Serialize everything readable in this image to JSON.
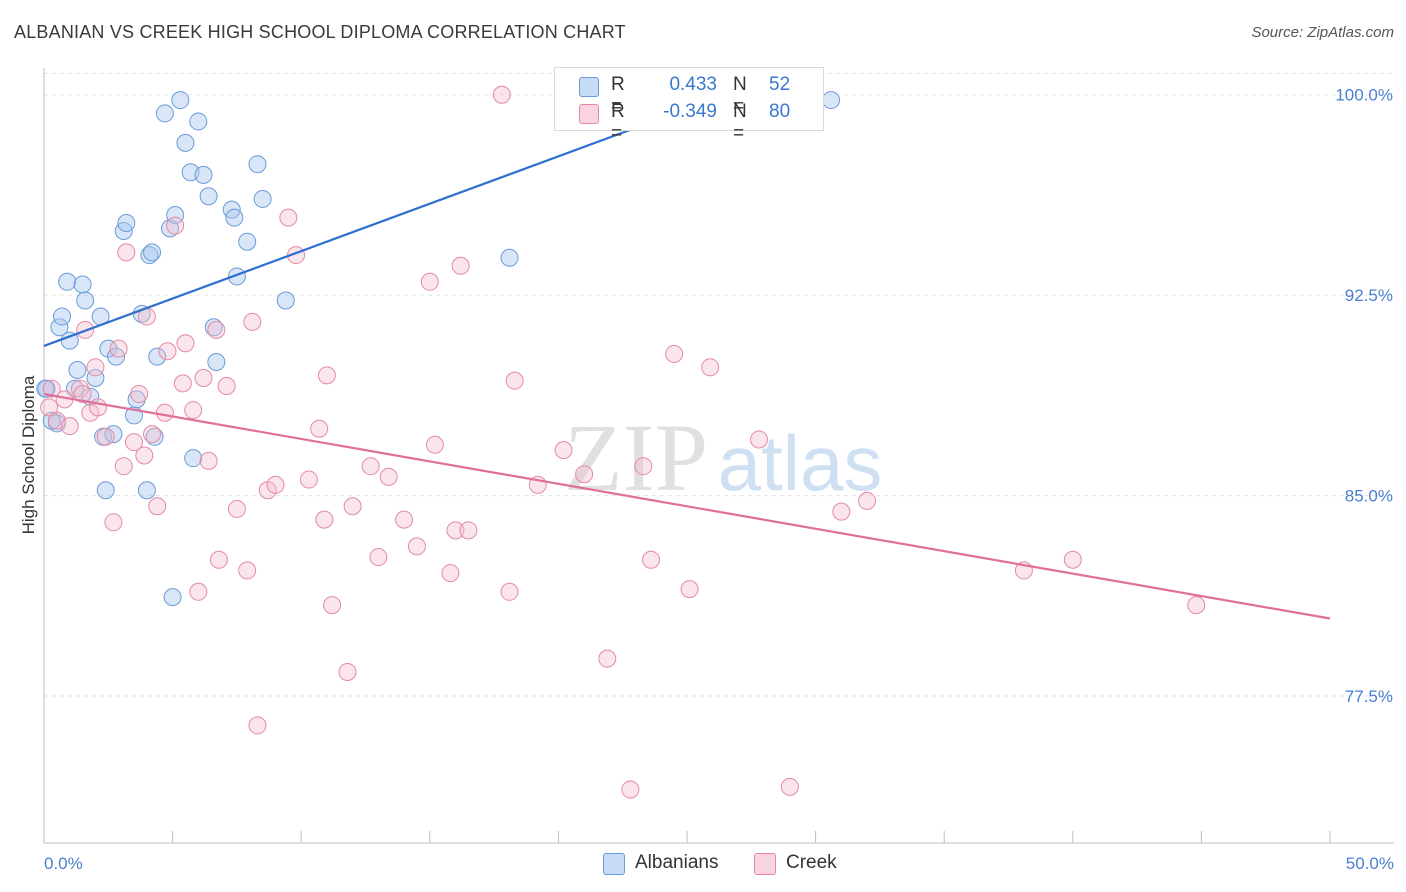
{
  "title": "ALBANIAN VS CREEK HIGH SCHOOL DIPLOMA CORRELATION CHART",
  "source": "Source: ZipAtlas.com",
  "watermark": {
    "zip": "ZIP",
    "atlas": "atlas"
  },
  "legend": {
    "r_label": "R =",
    "n_label": "N =",
    "rows": [
      {
        "name": "Albanians",
        "r": "0.433",
        "n": "52",
        "color": "#a9c7ee",
        "edge": "#6a9bd8"
      },
      {
        "name": "Creek",
        "r": "-0.349",
        "n": "80",
        "color": "#f6bfcf",
        "edge": "#e48aa6"
      }
    ]
  },
  "colors": {
    "blue_line": "#2f6fcf",
    "pink_line": "#e0709a",
    "grid": "#e3e3e3",
    "tick_text": "#4a7fcf"
  },
  "chart_data": {
    "type": "scatter",
    "title": "ALBANIAN VS CREEK HIGH SCHOOL DIPLOMA CORRELATION CHART",
    "ylabel": "High School Diploma",
    "xlabel": "",
    "xlim": [
      0,
      50
    ],
    "ylim": [
      72,
      101
    ],
    "x_tick_labels": {
      "left": "0.0%",
      "right": "50.0%"
    },
    "y_ticks": [
      {
        "value": 100,
        "label": "100.0%"
      },
      {
        "value": 92.5,
        "label": "92.5%"
      },
      {
        "value": 85,
        "label": "85.0%"
      },
      {
        "value": 77.5,
        "label": "77.5%"
      }
    ],
    "x_minor_ticks": [
      0,
      5,
      10,
      15,
      20,
      25,
      30,
      35,
      40,
      45,
      50
    ],
    "series": [
      {
        "name": "Albanians",
        "trend": {
          "x0": 0,
          "y0": 90.6,
          "x1": 26.5,
          "y1": 100
        },
        "points": [
          [
            0.1,
            89.0
          ],
          [
            0.5,
            87.7
          ],
          [
            0.6,
            91.3
          ],
          [
            0.7,
            91.7
          ],
          [
            0.9,
            93.0
          ],
          [
            1.0,
            90.8
          ],
          [
            1.2,
            89.0
          ],
          [
            1.3,
            89.7
          ],
          [
            1.5,
            92.9
          ],
          [
            1.6,
            92.3
          ],
          [
            1.8,
            88.7
          ],
          [
            2.0,
            89.4
          ],
          [
            2.2,
            91.7
          ],
          [
            2.3,
            87.2
          ],
          [
            2.4,
            85.2
          ],
          [
            2.5,
            90.5
          ],
          [
            2.7,
            87.3
          ],
          [
            2.8,
            90.2
          ],
          [
            3.1,
            94.9
          ],
          [
            3.2,
            95.2
          ],
          [
            3.5,
            88.0
          ],
          [
            3.6,
            88.6
          ],
          [
            3.8,
            91.8
          ],
          [
            4.0,
            85.2
          ],
          [
            4.1,
            94.0
          ],
          [
            4.2,
            94.1
          ],
          [
            4.3,
            87.2
          ],
          [
            4.4,
            90.2
          ],
          [
            4.7,
            99.3
          ],
          [
            4.9,
            95.0
          ],
          [
            5.0,
            81.2
          ],
          [
            5.1,
            95.5
          ],
          [
            5.3,
            99.8
          ],
          [
            5.5,
            98.2
          ],
          [
            5.7,
            97.1
          ],
          [
            5.8,
            86.4
          ],
          [
            6.0,
            99.0
          ],
          [
            6.2,
            97.0
          ],
          [
            6.4,
            96.2
          ],
          [
            6.6,
            91.3
          ],
          [
            6.7,
            90.0
          ],
          [
            7.3,
            95.7
          ],
          [
            7.4,
            95.4
          ],
          [
            7.5,
            93.2
          ],
          [
            7.9,
            94.5
          ],
          [
            8.3,
            97.4
          ],
          [
            8.5,
            96.1
          ],
          [
            9.4,
            92.3
          ],
          [
            18.1,
            93.9
          ],
          [
            30.6,
            99.8
          ],
          [
            0.05,
            89.0
          ],
          [
            0.3,
            87.8
          ]
        ]
      },
      {
        "name": "Creek",
        "trend": {
          "x0": 0,
          "y0": 88.8,
          "x1": 50,
          "y1": 80.4
        },
        "points": [
          [
            0.2,
            88.3
          ],
          [
            0.3,
            89.0
          ],
          [
            0.5,
            87.8
          ],
          [
            0.8,
            88.6
          ],
          [
            1.0,
            87.6
          ],
          [
            1.4,
            89.0
          ],
          [
            1.5,
            88.8
          ],
          [
            1.6,
            91.2
          ],
          [
            1.8,
            88.1
          ],
          [
            2.0,
            89.8
          ],
          [
            2.1,
            88.3
          ],
          [
            2.4,
            87.2
          ],
          [
            2.7,
            84.0
          ],
          [
            2.9,
            90.5
          ],
          [
            3.1,
            86.1
          ],
          [
            3.2,
            94.1
          ],
          [
            3.5,
            87.0
          ],
          [
            3.7,
            88.8
          ],
          [
            3.9,
            86.5
          ],
          [
            4.0,
            91.7
          ],
          [
            4.2,
            87.3
          ],
          [
            4.4,
            84.6
          ],
          [
            4.7,
            88.1
          ],
          [
            4.8,
            90.4
          ],
          [
            5.1,
            95.1
          ],
          [
            5.4,
            89.2
          ],
          [
            5.5,
            90.7
          ],
          [
            5.8,
            88.2
          ],
          [
            6.0,
            81.4
          ],
          [
            6.2,
            89.4
          ],
          [
            6.4,
            86.3
          ],
          [
            6.7,
            91.2
          ],
          [
            6.8,
            82.6
          ],
          [
            7.1,
            89.1
          ],
          [
            7.5,
            84.5
          ],
          [
            7.9,
            82.2
          ],
          [
            8.1,
            91.5
          ],
          [
            8.3,
            76.4
          ],
          [
            8.7,
            85.2
          ],
          [
            9.0,
            85.4
          ],
          [
            9.5,
            95.4
          ],
          [
            9.8,
            94.0
          ],
          [
            10.3,
            85.6
          ],
          [
            10.7,
            87.5
          ],
          [
            10.9,
            84.1
          ],
          [
            11.0,
            89.5
          ],
          [
            11.2,
            80.9
          ],
          [
            11.8,
            78.4
          ],
          [
            12.0,
            84.6
          ],
          [
            12.7,
            86.1
          ],
          [
            13.0,
            82.7
          ],
          [
            13.4,
            85.7
          ],
          [
            14.0,
            84.1
          ],
          [
            14.5,
            83.1
          ],
          [
            15.0,
            93.0
          ],
          [
            15.2,
            86.9
          ],
          [
            15.8,
            82.1
          ],
          [
            16.0,
            83.7
          ],
          [
            16.2,
            93.6
          ],
          [
            16.5,
            83.7
          ],
          [
            17.8,
            100.0
          ],
          [
            18.1,
            81.4
          ],
          [
            18.3,
            89.3
          ],
          [
            19.2,
            85.4
          ],
          [
            20.2,
            86.7
          ],
          [
            21.0,
            85.8
          ],
          [
            21.9,
            78.9
          ],
          [
            22.8,
            74.0
          ],
          [
            23.3,
            86.1
          ],
          [
            23.6,
            82.6
          ],
          [
            24.5,
            90.3
          ],
          [
            25.1,
            81.5
          ],
          [
            25.9,
            89.8
          ],
          [
            27.8,
            87.1
          ],
          [
            29.0,
            74.1
          ],
          [
            31.0,
            84.4
          ],
          [
            32.0,
            84.8
          ],
          [
            38.1,
            82.2
          ],
          [
            40.0,
            82.6
          ],
          [
            44.8,
            80.9
          ]
        ]
      }
    ]
  }
}
